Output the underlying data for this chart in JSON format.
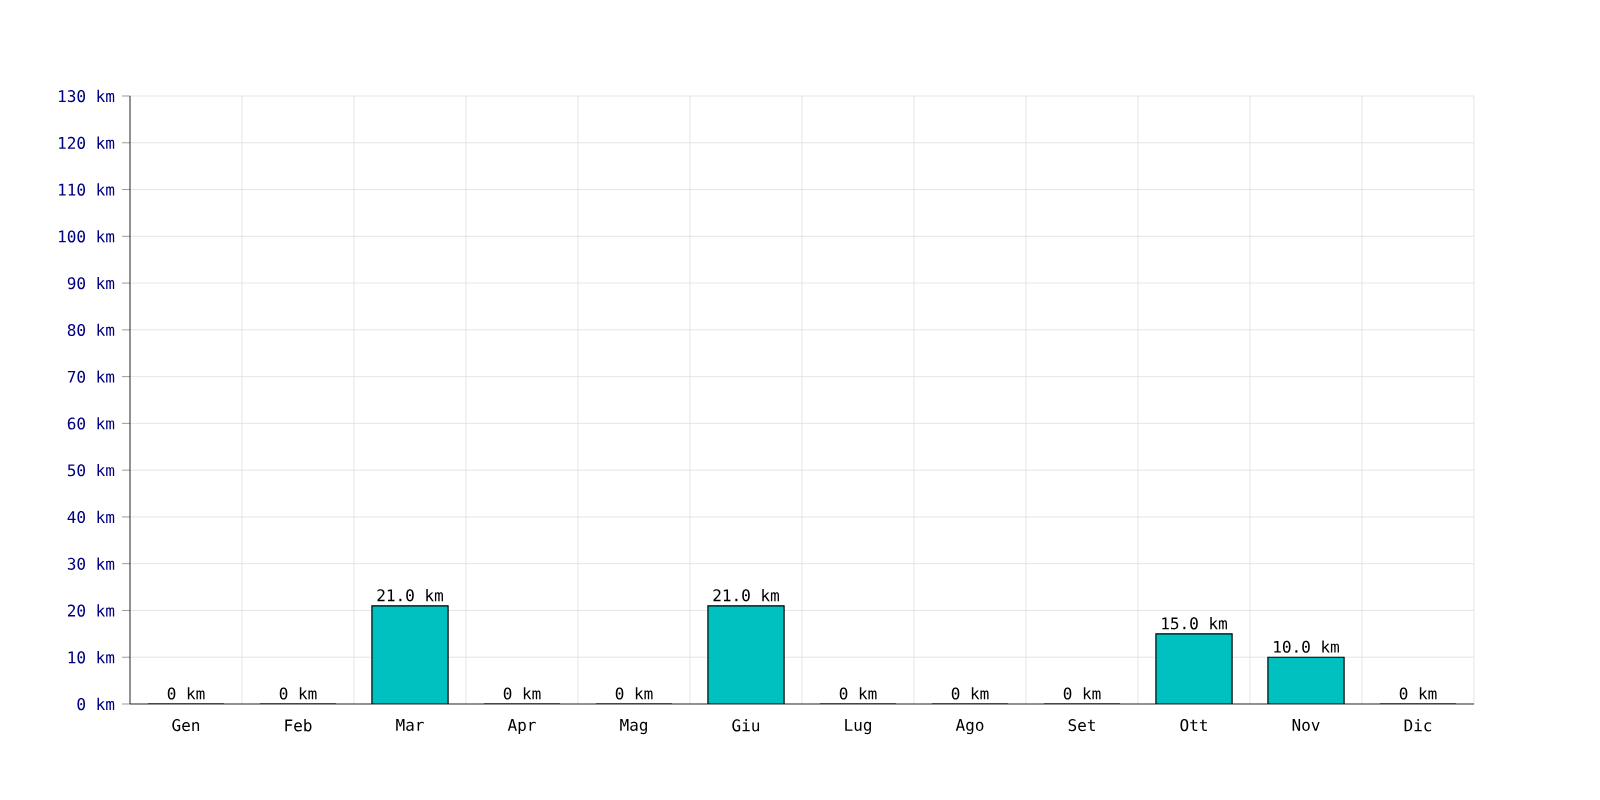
{
  "chart_data": {
    "type": "bar",
    "categories": [
      "Gen",
      "Feb",
      "Mar",
      "Apr",
      "Mag",
      "Giu",
      "Lug",
      "Ago",
      "Set",
      "Ott",
      "Nov",
      "Dic"
    ],
    "values": [
      0,
      0,
      21,
      0,
      0,
      21,
      0,
      0,
      0,
      15,
      10,
      0
    ],
    "value_labels": [
      "0 km",
      "0 km",
      "21.0 km",
      "0 km",
      "0 km",
      "21.0 km",
      "0 km",
      "0 km",
      "0 km",
      "15.0 km",
      "10.0 km",
      "0 km"
    ],
    "color": "#00c0c0",
    "ylim": [
      0,
      130
    ],
    "yticks": [
      {
        "value": 0,
        "label": "0 km"
      },
      {
        "value": 10,
        "label": "10 km"
      },
      {
        "value": 20,
        "label": "20 km"
      },
      {
        "value": 30,
        "label": "30 km"
      },
      {
        "value": 40,
        "label": "40 km"
      },
      {
        "value": 50,
        "label": "50 km"
      },
      {
        "value": 60,
        "label": "60 km"
      },
      {
        "value": 70,
        "label": "70 km"
      },
      {
        "value": 80,
        "label": "80 km"
      },
      {
        "value": 90,
        "label": "90 km"
      },
      {
        "value": 100,
        "label": "100 km"
      },
      {
        "value": 110,
        "label": "110 km"
      },
      {
        "value": 120,
        "label": "120 km"
      },
      {
        "value": 130,
        "label": "130 km"
      }
    ],
    "grid": true
  }
}
